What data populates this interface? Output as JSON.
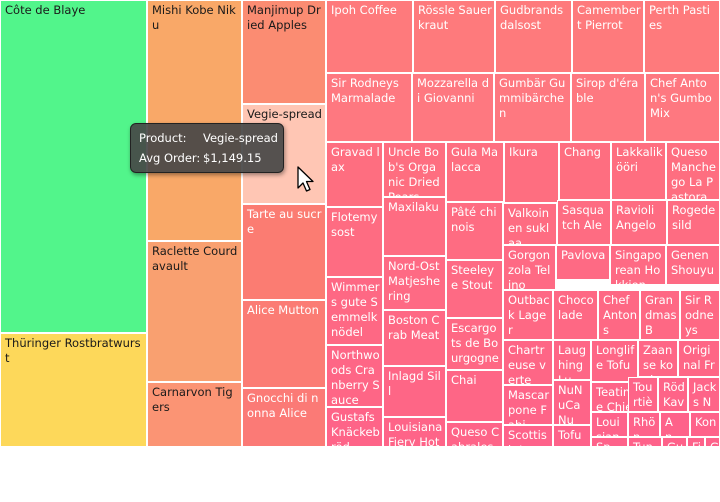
{
  "chart_data": {
    "type": "treemap",
    "items": [
      {
        "name": "Côte de Blaye",
        "value": 141396,
        "color": "#52f58b"
      },
      {
        "name": "Thüringer Rostbratwurst",
        "value": 80369,
        "color": "#fdd85a"
      },
      {
        "name": "Mishi Kobe Niku",
        "value": 72000,
        "color": "#f9a868"
      },
      {
        "name": "Raclette Courdavault",
        "value": 71155,
        "color": "#f9a070"
      },
      {
        "name": "Carnarvon Tigers",
        "value": 29171,
        "color": "#fb9474"
      },
      {
        "name": "Manjimup Dried Apples",
        "value": 41820,
        "color": "#fb8c72"
      },
      {
        "name": "Vegie-spread",
        "value": 1149.15,
        "color": "#ffc6b4"
      },
      {
        "name": "Tarte au sucre",
        "value": 30000,
        "color": "#fb7c72"
      },
      {
        "name": "Alice Mutton",
        "value": 23000,
        "color": "#fb7c74"
      },
      {
        "name": "Gnocchi di nonna Alice",
        "value": 22000,
        "color": "#fb7a76"
      },
      {
        "name": "Ipoh Coffee",
        "value": 20000,
        "color": "#fe7a7c"
      },
      {
        "name": "Rössle Sauerkraut",
        "value": 17000,
        "color": "#fe7a7c"
      },
      {
        "name": "Gudbrandsdalsost",
        "value": 17000,
        "color": "#fe7a7c"
      },
      {
        "name": "Camembert Pierrot",
        "value": 17000,
        "color": "#fe7a7c"
      },
      {
        "name": "Perth Pasties",
        "value": 17000,
        "color": "#fe7a7c"
      },
      {
        "name": "Sir Rodneys Marmalade",
        "value": 16000,
        "color": "#fe7880"
      },
      {
        "name": "Mozzarella di Giovanni",
        "value": 16000,
        "color": "#fe7880"
      },
      {
        "name": "Gumbär Gummibärchen",
        "value": 16000,
        "color": "#fe7880"
      },
      {
        "name": "Sirop d'érable",
        "value": 16000,
        "color": "#fe7880"
      },
      {
        "name": "Chef Anton's Gumbo Mix",
        "value": 16000,
        "color": "#fe7880"
      },
      {
        "name": "Gravad lax",
        "value": 11000,
        "color": "#fe6e80"
      },
      {
        "name": "Uncle Bob's Organic Dried Pears",
        "value": 8000,
        "color": "#fe6e80"
      },
      {
        "name": "Gula Malacca",
        "value": 8000,
        "color": "#fe6e80"
      },
      {
        "name": "Ikura",
        "value": 8000,
        "color": "#fe6e80"
      },
      {
        "name": "Chang",
        "value": 8000,
        "color": "#fe6e80"
      },
      {
        "name": "Lakkalikööri",
        "value": 8000,
        "color": "#fe6e80"
      },
      {
        "name": "Queso Manchego La Pastora",
        "value": 8000,
        "color": "#fe6e80"
      },
      {
        "name": "Flotemysost",
        "value": 7000,
        "color": "#fe6c82"
      },
      {
        "name": "Maxilaku",
        "value": 6000,
        "color": "#fe6c82"
      },
      {
        "name": "Pâté chinois",
        "value": 6000,
        "color": "#fe6c82"
      },
      {
        "name": "Valkoinen suklaa",
        "value": 6000,
        "color": "#fe6c82"
      },
      {
        "name": "Sasquatch Ale",
        "value": 6000,
        "color": "#fe6c82"
      },
      {
        "name": "Ravioli Angelo",
        "value": 6000,
        "color": "#fe6c82"
      },
      {
        "name": "Rogede sild",
        "value": 6000,
        "color": "#fe6c82"
      },
      {
        "name": "Nord-Ost Matjeshering",
        "value": 5000,
        "color": "#fe6a84"
      },
      {
        "name": "Steeleye Stout",
        "value": 5000,
        "color": "#fe6a84"
      },
      {
        "name": "Gorgonzola Telino",
        "value": 5000,
        "color": "#fe6a84"
      },
      {
        "name": "Pavlova",
        "value": 5000,
        "color": "#fe6a84"
      },
      {
        "name": "Singaporean Hokkien",
        "value": 5000,
        "color": "#fe6a84"
      },
      {
        "name": "Genen Shouyu",
        "value": 5000,
        "color": "#fe6a84"
      },
      {
        "name": "Wimmers gute Semmelknödel",
        "value": 5000,
        "color": "#fe6884"
      },
      {
        "name": "Boston Crab Meat",
        "value": 4500,
        "color": "#fe6884"
      },
      {
        "name": "Escargots de Bourgogne",
        "value": 4500,
        "color": "#fe6884"
      },
      {
        "name": "Outback Lager",
        "value": 4000,
        "color": "#fe6884"
      },
      {
        "name": "Chocolade",
        "value": 4000,
        "color": "#fe6884"
      },
      {
        "name": "Chef Antons",
        "value": 4000,
        "color": "#fe6884"
      },
      {
        "name": "Grandmas B",
        "value": 4000,
        "color": "#fe6884"
      },
      {
        "name": "Sir Rodneys",
        "value": 4000,
        "color": "#fe6884"
      },
      {
        "name": "Northwoods Cranberry Sauce",
        "value": 4000,
        "color": "#fe6686"
      },
      {
        "name": "Inlagd Sill",
        "value": 3500,
        "color": "#fe6686"
      },
      {
        "name": "Chai",
        "value": 3500,
        "color": "#fe6686"
      },
      {
        "name": "Chartreuse verte",
        "value": 3000,
        "color": "#fe6686"
      },
      {
        "name": "Laughing Lu",
        "value": 3000,
        "color": "#fe6686"
      },
      {
        "name": "Longlife Tofu",
        "value": 3000,
        "color": "#fe6686"
      },
      {
        "name": "Zaanse koeken",
        "value": 3000,
        "color": "#fe6686"
      },
      {
        "name": "Original Fran",
        "value": 3000,
        "color": "#fe6686"
      },
      {
        "name": "Gustafs Knäckebröd",
        "value": 3500,
        "color": "#fe6488"
      },
      {
        "name": "Louisiana Fiery Hot Pepper Sauce",
        "value": 3500,
        "color": "#fe6488"
      },
      {
        "name": "Queso Cabrales",
        "value": 3000,
        "color": "#fe6488"
      },
      {
        "name": "Mascarpone Fabi",
        "value": 2800,
        "color": "#fe6488"
      },
      {
        "name": "NuNuCa Nu",
        "value": 2500,
        "color": "#fe6488"
      },
      {
        "name": "Teatime Chie",
        "value": 2000,
        "color": "#fe6488"
      },
      {
        "name": "Tourtière",
        "value": 1800,
        "color": "#fe6488"
      },
      {
        "name": "Röd Kavi",
        "value": 1500,
        "color": "#fe6488"
      },
      {
        "name": "Jacks New",
        "value": 1500,
        "color": "#fe6488"
      },
      {
        "name": "Scottish Longbre",
        "value": 2500,
        "color": "#fe628a"
      },
      {
        "name": "Tofu",
        "value": 2300,
        "color": "#fe628a"
      },
      {
        "name": "Louisiana H",
        "value": 1800,
        "color": "#fe628a"
      },
      {
        "name": "Rhön",
        "value": 1300,
        "color": "#fe628a"
      },
      {
        "name": "An...",
        "value": 1000,
        "color": "#fe628a"
      },
      {
        "name": "Kon",
        "value": 900,
        "color": "#fe628a"
      },
      {
        "name": "Sp...",
        "value": 1200,
        "color": "#fe628a"
      },
      {
        "name": "Tunn",
        "value": 1100,
        "color": "#fe628a"
      },
      {
        "name": "Gu",
        "value": 700,
        "color": "#fe628a"
      },
      {
        "name": "Fil",
        "value": 600,
        "color": "#fe628a"
      },
      {
        "name": "G",
        "value": 400,
        "color": "#fe628a"
      }
    ]
  },
  "tooltip": {
    "product_label": "Product:",
    "product_value": "Vegie-spread",
    "order_label": "Avg Order:",
    "order_value": "$1,149.15"
  },
  "cursor_icon": "mouse-pointer-icon"
}
